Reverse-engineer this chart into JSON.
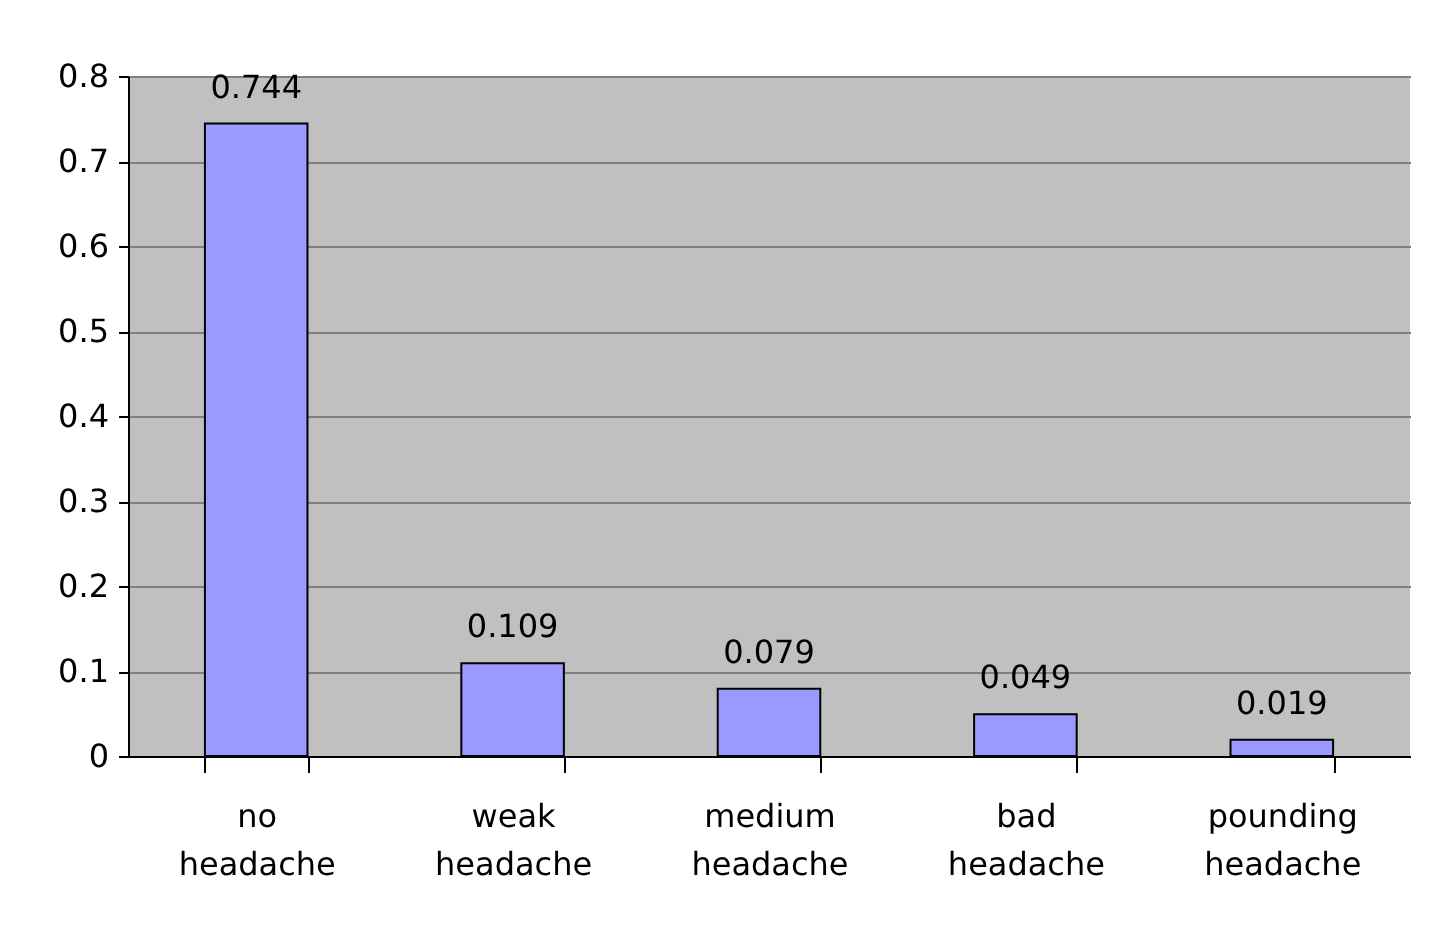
{
  "chart_data": {
    "type": "bar",
    "categories": [
      "no headache",
      "weak headache",
      "medium headache",
      "bad headache",
      "pounding headache"
    ],
    "values": [
      0.744,
      0.109,
      0.079,
      0.049,
      0.019
    ],
    "color": "#9999ff",
    "ylim": [
      0,
      0.8
    ],
    "yticks": [
      0,
      0.1,
      0.2,
      0.3,
      0.4,
      0.5,
      0.6,
      0.7,
      0.8
    ],
    "grid": "y",
    "data_labels": true
  }
}
